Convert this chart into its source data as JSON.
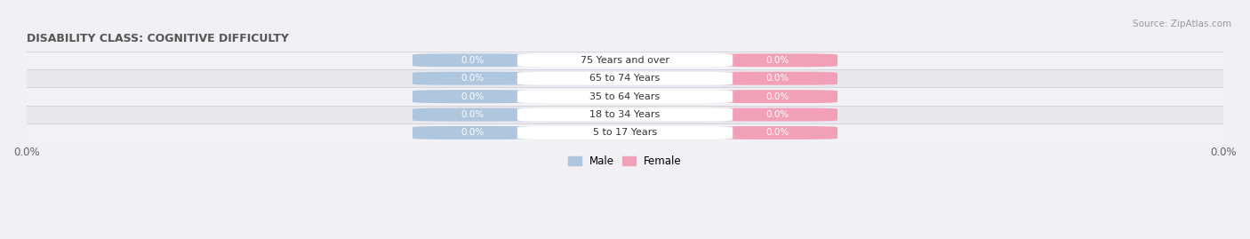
{
  "title": "DISABILITY CLASS: COGNITIVE DIFFICULTY",
  "source": "Source: ZipAtlas.com",
  "categories": [
    "5 to 17 Years",
    "18 to 34 Years",
    "35 to 64 Years",
    "65 to 74 Years",
    "75 Years and over"
  ],
  "male_values": [
    0.0,
    0.0,
    0.0,
    0.0,
    0.0
  ],
  "female_values": [
    0.0,
    0.0,
    0.0,
    0.0,
    0.0
  ],
  "male_color": "#aec6de",
  "female_color": "#f2a0b8",
  "center_label_bg": "#ffffff",
  "row_bg_light": "#f2f2f6",
  "row_bg_dark": "#e8e8ee",
  "separator_color": "#d0d0d8",
  "title_color": "#555555",
  "source_color": "#999999",
  "legend_male_color": "#aec6de",
  "legend_female_color": "#f2a0b8",
  "value_label_color": "#ffffff",
  "center_label_color": "#333333",
  "background_color": "#f0f0f5",
  "x_left_label": "0.0%",
  "x_right_label": "0.0%"
}
